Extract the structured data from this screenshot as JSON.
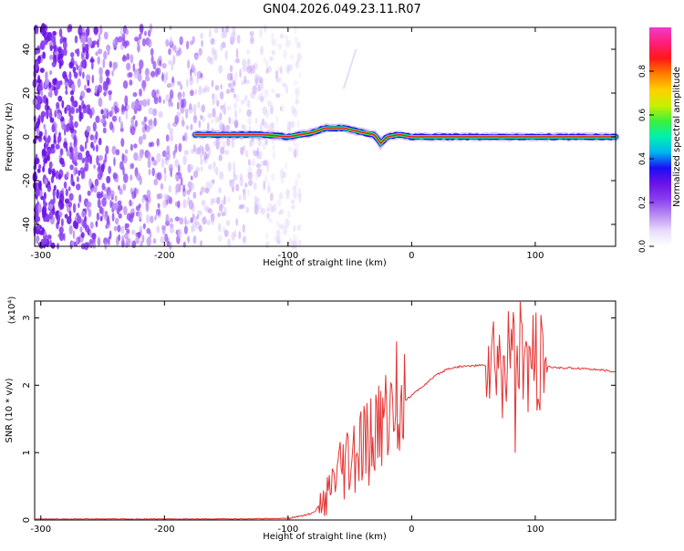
{
  "figure_title": "GN04.2026.049.23.11.R07",
  "colors": {
    "snr_line": "#e53333",
    "background": "#ffffff",
    "colormap": [
      "#ffffff",
      "#e8dcfb",
      "#b98cf3",
      "#8a3ff0",
      "#6a14e6",
      "#1b0df5",
      "#00b4f0",
      "#00f0b0",
      "#3cf03c",
      "#c8f000",
      "#ffd000",
      "#ff8000",
      "#ff1818",
      "#ff1e78",
      "#f03cc8"
    ]
  },
  "chart_data": [
    {
      "type": "heatmap",
      "title": "GN04.2026.049.23.11.R07",
      "xlabel": "Height of straight line (km)",
      "ylabel": "Frequency (Hz)",
      "xlim": [
        -305,
        165
      ],
      "ylim": [
        -50,
        50
      ],
      "x_ticks": [
        -300,
        -200,
        -100,
        0,
        100
      ],
      "x_tick_labels": [
        "-300",
        "-200",
        "-100",
        "0",
        "100"
      ],
      "y_ticks": [
        -40,
        -20,
        0,
        20,
        40
      ],
      "y_tick_labels": [
        "-40",
        "-20",
        "0",
        "20",
        "40"
      ],
      "colorbar": {
        "label": "Normalized spectral amplitude",
        "range": [
          0,
          1
        ],
        "ticks": [
          0.0,
          0.2,
          0.4,
          0.6,
          0.8
        ],
        "tick_labels": [
          "0.0",
          "0.2",
          "0.4",
          "0.6",
          "0.8"
        ]
      },
      "noise_region_x": [
        -305,
        -100
      ],
      "signal_band": {
        "center_frequency": 0,
        "start_x": -175,
        "end_x": 165,
        "bump_points": [
          [
            -175,
            1
          ],
          [
            -150,
            1
          ],
          [
            -120,
            1
          ],
          [
            -100,
            0
          ],
          [
            -80,
            2
          ],
          [
            -70,
            4
          ],
          [
            -55,
            4
          ],
          [
            -40,
            2
          ],
          [
            -30,
            1
          ],
          [
            -25,
            -3
          ],
          [
            -20,
            0
          ],
          [
            -10,
            1
          ],
          [
            0,
            0
          ],
          [
            60,
            0
          ],
          [
            100,
            0
          ],
          [
            165,
            0
          ]
        ]
      }
    },
    {
      "type": "line",
      "xlabel": "Height of straight line (km)",
      "ylabel": "SNR (10 * v/v)",
      "y_multiplier": "(x10⁴)",
      "xlim": [
        -305,
        165
      ],
      "ylim": [
        0,
        3.25
      ],
      "x_ticks": [
        -300,
        -200,
        -100,
        0,
        100
      ],
      "x_tick_labels": [
        "-300",
        "-200",
        "-100",
        "0",
        "100"
      ],
      "y_ticks": [
        0,
        1,
        2,
        3
      ],
      "y_tick_labels": [
        "0",
        "1",
        "2",
        "3"
      ],
      "series": [
        {
          "color": "#e53333",
          "x": [
            -305,
            -250,
            -200,
            -150,
            -100,
            -80,
            -70,
            -60,
            -50,
            -40,
            -30,
            -20,
            -10,
            0,
            10,
            20,
            30,
            40,
            50,
            60,
            65,
            80,
            100,
            110,
            120,
            140,
            165
          ],
          "y": [
            0.01,
            0.01,
            0.01,
            0.01,
            0.02,
            0.1,
            0.3,
            0.6,
            0.8,
            1.0,
            1.25,
            1.6,
            1.7,
            1.85,
            2.0,
            2.15,
            2.25,
            2.28,
            2.29,
            2.3,
            2.3,
            2.3,
            2.28,
            2.27,
            2.26,
            2.25,
            2.2
          ]
        }
      ],
      "volatile_regions": [
        {
          "x_range": [
            -75,
            -5
          ],
          "amplitude": 0.7
        },
        {
          "x_range": [
            60,
            110
          ],
          "amplitude": 0.8
        }
      ],
      "peaks": [
        [
          -12,
          2.65
        ],
        [
          88,
          3.25
        ],
        [
          78,
          3.1
        ],
        [
          84,
          1.0
        ]
      ]
    }
  ]
}
